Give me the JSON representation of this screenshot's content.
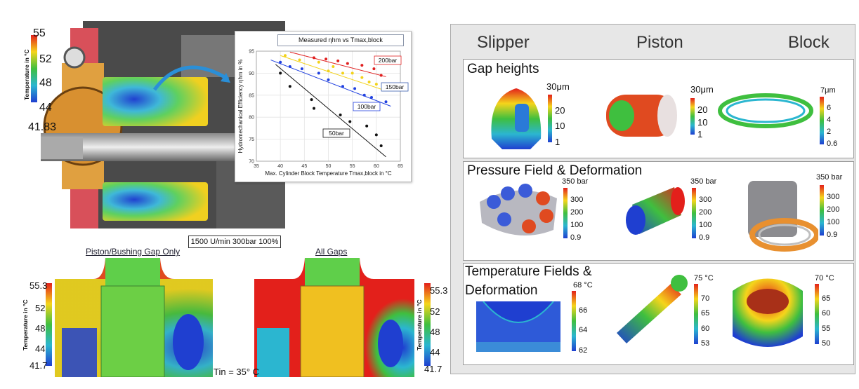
{
  "left": {
    "pump_colorbar": {
      "axis_label": "Temperature in °C",
      "ticks": [
        "55",
        "52",
        "48",
        "44",
        "41.83"
      ]
    },
    "chart": {
      "title": "Measured ηhm vs Tmax,block",
      "series_labels": [
        "200bar",
        "150bar",
        "100bar",
        "50bar"
      ]
    },
    "operating_point": "1500 U/min 300bar 100%",
    "sim_left": {
      "title": "Piston/Bushing Gap Only",
      "axis_label": "Temperature in °C",
      "ticks": [
        "55.3",
        "52",
        "48",
        "44",
        "41.7"
      ]
    },
    "sim_right": {
      "title": "All Gaps",
      "axis_label": "Temperature in °C",
      "ticks": [
        "55.3",
        "52",
        "48",
        "44",
        "41.7"
      ]
    },
    "inlet_temp": "Tin = 35° C"
  },
  "chart_data": {
    "type": "scatter",
    "title": "Measured ηhm vs Tmax,block",
    "xlabel": "Max. Cylinder Block Temperature Tmax,block in °C",
    "ylabel": "Hydromechanical Efficiency ηhm in %",
    "xlim": [
      35,
      65
    ],
    "ylim": [
      70,
      95
    ],
    "xticks": [
      35,
      40,
      45,
      50,
      55,
      60,
      65
    ],
    "yticks": [
      70,
      75,
      80,
      85,
      90,
      95
    ],
    "grid": true,
    "series": [
      {
        "name": "200bar",
        "color": "#e02020",
        "x": [
          47,
          49.5,
          52,
          54,
          57,
          59.5,
          61
        ],
        "y": [
          93.5,
          93.2,
          92.8,
          92.2,
          91.8,
          91.0,
          89.5
        ],
        "fit": [
          [
            42,
            94.8
          ],
          [
            62,
            89.2
          ]
        ]
      },
      {
        "name": "150bar",
        "color": "#f2d21a",
        "x": [
          41,
          44,
          48,
          50,
          51,
          53,
          55,
          57,
          58.5,
          60
        ],
        "y": [
          94.0,
          93.0,
          92.5,
          90.5,
          91.5,
          90.0,
          90.0,
          89.0,
          88.0,
          87.5
        ],
        "fit": [
          [
            40,
            94.0
          ],
          [
            62,
            86.0
          ]
        ]
      },
      {
        "name": "100bar",
        "color": "#2040e0",
        "x": [
          40,
          42,
          44.5,
          48,
          50,
          53,
          55.5,
          57.5,
          59,
          62
        ],
        "y": [
          92.5,
          91.5,
          91.0,
          90.0,
          88.5,
          87.0,
          86.5,
          85.0,
          84.5,
          83.5
        ],
        "fit": [
          [
            38,
            93.0
          ],
          [
            63,
            82.5
          ]
        ]
      },
      {
        "name": "50bar",
        "color": "#111111",
        "x": [
          40,
          42,
          46.5,
          47,
          52.5,
          54.5,
          58,
          60,
          61
        ],
        "y": [
          90.0,
          87.0,
          84.0,
          82.0,
          80.5,
          79.0,
          78.0,
          76.0,
          73.5
        ],
        "fit": [
          [
            39,
            92.0
          ],
          [
            62,
            71.0
          ]
        ]
      }
    ]
  },
  "right": {
    "columns": [
      "Slipper",
      "Piston",
      "Block"
    ],
    "rows": [
      {
        "title": "Gap heights",
        "scales": [
          {
            "max": "30μm",
            "ticks": [
              "20",
              "10",
              "1"
            ]
          },
          {
            "max": "30μm",
            "ticks": [
              "20",
              "10",
              "1"
            ]
          },
          {
            "max": "7μm",
            "ticks": [
              "6",
              "4",
              "2",
              "0.6"
            ]
          }
        ]
      },
      {
        "title": "Pressure Field & Deformation",
        "scales": [
          {
            "max": "350 bar",
            "ticks": [
              "300",
              "200",
              "100",
              "0.9"
            ]
          },
          {
            "max": "350 bar",
            "ticks": [
              "300",
              "200",
              "100",
              "0.9"
            ]
          },
          {
            "max": "350 bar",
            "ticks": [
              "300",
              "200",
              "100",
              "0.9"
            ]
          }
        ]
      },
      {
        "title_line1": "Temperature Fields &",
        "title_line2": "Deformation",
        "scales": [
          {
            "max": "68 °C",
            "ticks": [
              "66",
              "64",
              "62"
            ]
          },
          {
            "max": "75 °C",
            "ticks": [
              "70",
              "65",
              "60",
              "53"
            ]
          },
          {
            "max": "70 °C",
            "ticks": [
              "65",
              "60",
              "55",
              "50"
            ]
          }
        ]
      }
    ]
  },
  "colors": {
    "rainbow_top": "#e3201b",
    "rainbow_mid": "#3fbf3f",
    "rainbow_bottom": "#1f3fd0",
    "panel_bg": "#e7e7e7"
  }
}
